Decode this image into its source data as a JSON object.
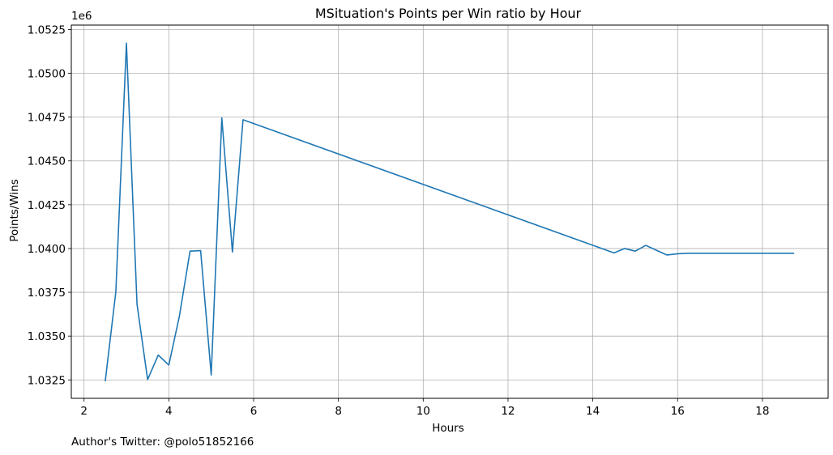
{
  "chart_data": {
    "type": "line",
    "title": "MSituation's Points per Win ratio by Hour",
    "xlabel": "Hours",
    "ylabel": "Points/Wins",
    "y_offset_label": "1e6",
    "xlim": [
      1.7,
      19.55
    ],
    "ylim": [
      1.03145,
      1.05275
    ],
    "x_ticks": [
      2,
      4,
      6,
      8,
      10,
      12,
      14,
      16,
      18
    ],
    "y_ticks": [
      1.0325,
      1.035,
      1.0375,
      1.04,
      1.0425,
      1.045,
      1.0475,
      1.05,
      1.0525
    ],
    "x_tick_labels": [
      "2",
      "4",
      "6",
      "8",
      "10",
      "12",
      "14",
      "16",
      "18"
    ],
    "y_tick_labels": [
      "1.0325",
      "1.0350",
      "1.0375",
      "1.0400",
      "1.0425",
      "1.0450",
      "1.0475",
      "1.0500",
      "1.0525"
    ],
    "grid": true,
    "line_color": "#1f77b4",
    "series": [
      {
        "x": [
          2.5,
          2.75,
          3.0,
          3.25,
          3.5,
          3.75,
          4.0,
          4.25,
          4.5,
          4.75,
          5.0,
          5.25,
          5.5,
          5.75,
          14.5,
          14.75,
          15.0,
          15.25,
          15.5,
          15.75,
          16.0,
          16.25,
          16.5,
          16.75,
          17.0,
          17.25,
          17.5,
          17.75,
          18.0,
          18.25,
          18.5,
          18.75
        ],
        "y": [
          1.03242,
          1.03752,
          1.05172,
          1.03682,
          1.03252,
          1.03392,
          1.03335,
          1.03615,
          1.03985,
          1.03988,
          1.03278,
          1.04745,
          1.0398,
          1.04735,
          1.03975,
          1.04,
          1.03985,
          1.04018,
          1.0399,
          1.03963,
          1.0397,
          1.03973,
          1.03973,
          1.03973,
          1.03973,
          1.03973,
          1.03973,
          1.03973,
          1.03973,
          1.03973,
          1.03973,
          1.03973
        ]
      }
    ]
  },
  "footer": {
    "text": "Author's Twitter: @polo51852166"
  }
}
